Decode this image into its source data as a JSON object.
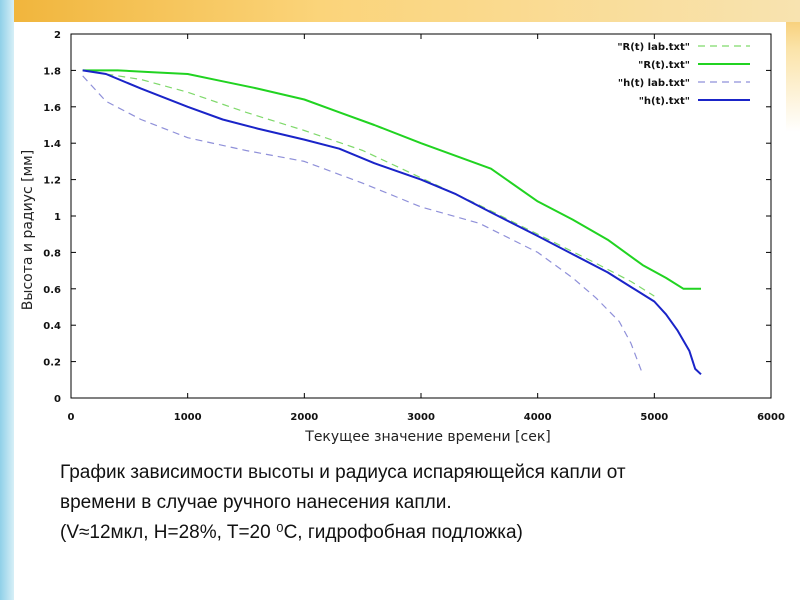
{
  "chart_data": {
    "type": "line",
    "xlabel": "Текущее значение времени [сек]",
    "ylabel": "Высота и радиус [мм]",
    "xlim": [
      0,
      6000
    ],
    "ylim": [
      0,
      2
    ],
    "x_ticks": [
      "0",
      "1000",
      "2000",
      "3000",
      "4000",
      "5000",
      "6000"
    ],
    "y_ticks": [
      "0",
      "0.2",
      "0.4",
      "0.6",
      "0.8",
      "1",
      "1.2",
      "1.4",
      "1.6",
      "1.8",
      "2"
    ],
    "grid": false,
    "legend_position": "top-right",
    "series": [
      {
        "name": "\"R(t) lab.txt\"",
        "color": "#7fd96b",
        "dash": true,
        "x": [
          100,
          300,
          600,
          1000,
          1500,
          2000,
          2500,
          3000,
          3500,
          4000,
          4500,
          4800,
          5000
        ],
        "y": [
          1.8,
          1.78,
          1.75,
          1.68,
          1.57,
          1.47,
          1.36,
          1.21,
          1.06,
          0.9,
          0.74,
          0.64,
          0.56
        ]
      },
      {
        "name": "\"R(t).txt\"",
        "color": "#21d321",
        "dash": false,
        "x": [
          100,
          400,
          700,
          1000,
          1300,
          1600,
          2000,
          2300,
          2600,
          3000,
          3300,
          3600,
          4000,
          4300,
          4600,
          4900,
          5100,
          5250,
          5300,
          5400
        ],
        "y": [
          1.8,
          1.8,
          1.79,
          1.78,
          1.74,
          1.7,
          1.64,
          1.57,
          1.5,
          1.4,
          1.33,
          1.26,
          1.08,
          0.98,
          0.87,
          0.73,
          0.66,
          0.6,
          0.6,
          0.6
        ]
      },
      {
        "name": "\"h(t) lab.txt\"",
        "color": "#8f90d9",
        "dash": true,
        "x": [
          100,
          300,
          600,
          1000,
          1500,
          2000,
          2500,
          3000,
          3500,
          4000,
          4300,
          4500,
          4700,
          4800,
          4900
        ],
        "y": [
          1.77,
          1.63,
          1.53,
          1.43,
          1.36,
          1.3,
          1.18,
          1.05,
          0.96,
          0.8,
          0.66,
          0.55,
          0.42,
          0.3,
          0.13
        ]
      },
      {
        "name": "\"h(t).txt\"",
        "color": "#1a24c8",
        "dash": false,
        "x": [
          100,
          300,
          600,
          1000,
          1300,
          1600,
          2000,
          2300,
          2600,
          3000,
          3300,
          3600,
          4000,
          4300,
          4600,
          4800,
          5000,
          5100,
          5200,
          5300,
          5350,
          5400
        ],
        "y": [
          1.8,
          1.78,
          1.7,
          1.6,
          1.53,
          1.48,
          1.42,
          1.37,
          1.29,
          1.2,
          1.12,
          1.02,
          0.89,
          0.79,
          0.69,
          0.61,
          0.53,
          0.46,
          0.37,
          0.26,
          0.16,
          0.13
        ]
      }
    ]
  },
  "caption": {
    "line1": "График зависимости высоты и радиуса испаряющейся капли от",
    "line2": "времени в случае ручного нанесения капли.",
    "line3": "(V≈12мкл, H=28%, T=20 ⁰С, гидрофобная подложка)"
  }
}
